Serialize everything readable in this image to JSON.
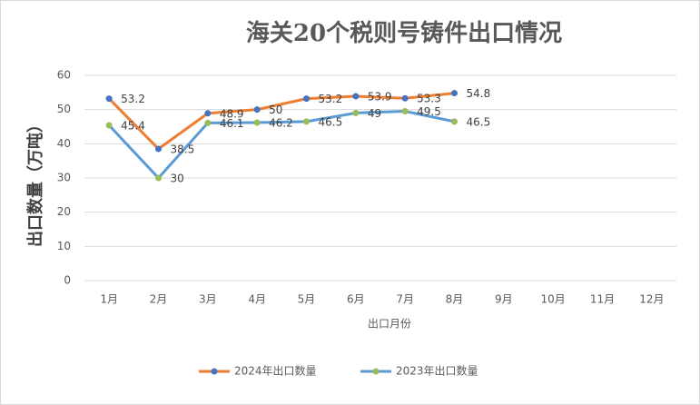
{
  "chart_data": {
    "type": "line",
    "title": "海关20个税则号铸件出口情况",
    "x_label": "出口月份",
    "y_label": "出口数量（万吨）",
    "categories": [
      "1月",
      "2月",
      "3月",
      "4月",
      "5月",
      "6月",
      "7月",
      "8月",
      "9月",
      "10月",
      "11月",
      "12月"
    ],
    "series": [
      {
        "name": "2024年出口数量",
        "color": "#ed7d31",
        "marker_color": "#4472c4",
        "values": [
          53.2,
          38.5,
          48.9,
          50,
          53.2,
          53.9,
          53.3,
          54.8,
          null,
          null,
          null,
          null
        ]
      },
      {
        "name": "2023年出口数量",
        "color": "#5b9bd5",
        "marker_color": "#9bbb59",
        "values": [
          45.4,
          30,
          46.1,
          46.2,
          46.5,
          49,
          49.5,
          46.5,
          null,
          null,
          null,
          null
        ]
      }
    ],
    "ylim": [
      0,
      60
    ],
    "yticks": [
      0,
      10,
      20,
      30,
      40,
      50,
      60
    ],
    "grid": true,
    "legend": "bottom"
  }
}
